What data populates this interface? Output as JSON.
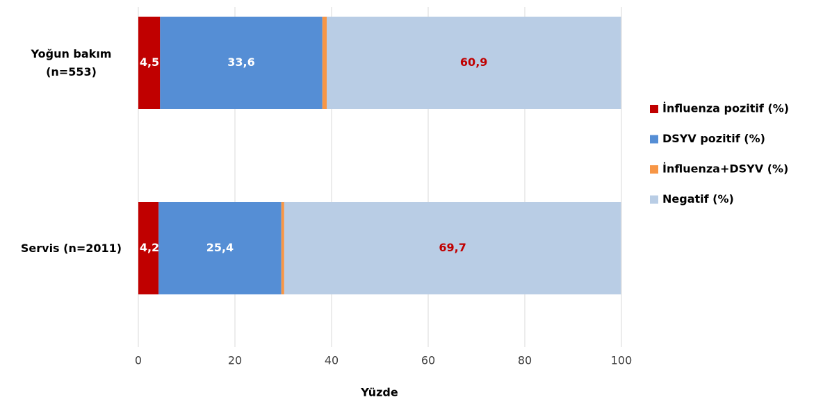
{
  "chart_data": {
    "type": "stacked-bar-horizontal",
    "x_label": "Yüzde",
    "categories": [
      "Yoğun bakım (n=553)",
      "Servis (n=2011)"
    ],
    "series": [
      {
        "name": "İnfluenza pozitif (%)",
        "color": "#c00000",
        "label_color": "#ffffff",
        "values": [
          4.5,
          4.2
        ],
        "value_labels": [
          "4,5",
          "4,2"
        ]
      },
      {
        "name": "DSYV pozitif (%)",
        "color": "#558ed5",
        "label_color": "#ffffff",
        "values": [
          33.6,
          25.4
        ],
        "value_labels": [
          "33,6",
          "25,4"
        ]
      },
      {
        "name": "İnfluenza+DSYV (%)",
        "color": "#f79646",
        "label_color": "#c00000",
        "values": [
          0.9,
          0.6
        ],
        "value_labels": [
          "0,9",
          "0,6"
        ]
      },
      {
        "name": "Negatif (%)",
        "color": "#b9cde5",
        "label_color": "#c00000",
        "values": [
          60.9,
          69.7
        ],
        "value_labels": [
          "60,9",
          "69,7"
        ]
      }
    ],
    "xlim": [
      0,
      100
    ],
    "xticks": [
      0,
      20,
      40,
      60,
      80,
      100
    ],
    "grid": true,
    "legend": "right"
  }
}
